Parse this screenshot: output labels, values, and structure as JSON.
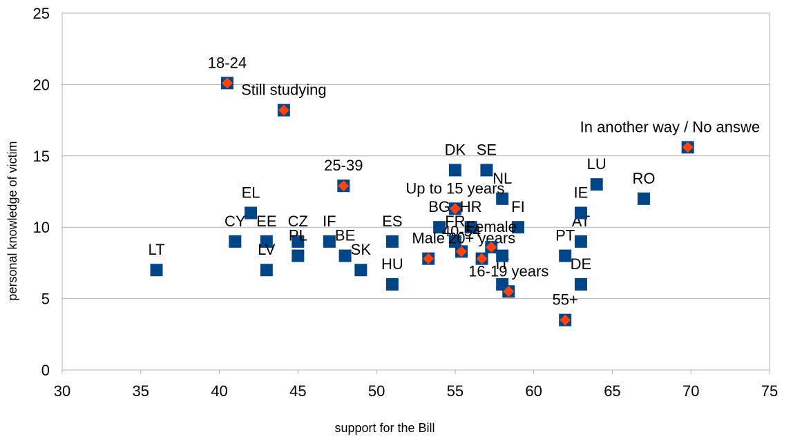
{
  "chart_data": {
    "type": "scatter",
    "xlabel": "support for the Bill",
    "ylabel": "personal knowledge of victim",
    "xlim": [
      30,
      75
    ],
    "xticks": [
      30,
      35,
      40,
      45,
      50,
      55,
      60,
      65,
      70,
      75
    ],
    "ylim": [
      0,
      25
    ],
    "yticks": [
      0,
      5,
      10,
      15,
      20,
      25
    ],
    "grid": true,
    "series": [
      {
        "color": "#004586",
        "marker": "square",
        "labels": [
          "LT",
          "CY",
          "EL",
          "EE",
          "LV",
          "CZ",
          "PL",
          "IF",
          "BE",
          "SK",
          "ES",
          "HU",
          "BG",
          "FR",
          "DK",
          "HR",
          "SE",
          "NL",
          "FI",
          "IT",
          null,
          "PT",
          "AT",
          "DE",
          "IE",
          "LU",
          "RO"
        ],
        "x": [
          36,
          41,
          42,
          43,
          43,
          45,
          45,
          47,
          48,
          49,
          51,
          51,
          54,
          55,
          55,
          56,
          57,
          58,
          59,
          58,
          58,
          62,
          63,
          63,
          63,
          64,
          67
        ],
        "y": [
          7,
          9,
          11,
          9,
          7,
          9,
          8,
          9,
          8,
          7,
          9,
          6,
          10,
          9,
          14,
          10,
          14,
          12,
          10,
          6,
          8,
          8,
          9,
          6,
          11,
          13,
          12
        ]
      },
      {
        "color": "#ff420e",
        "marker": "diamond",
        "labels": [
          "18-24",
          "Still studying",
          "25-39",
          "Up to 15 years",
          "Male",
          "40-54",
          "20+ years",
          "Female",
          "16-19 years",
          "55+",
          "In another way / No answe"
        ],
        "x": [
          40.5,
          44.1,
          47.9,
          55.0,
          53.3,
          55.4,
          56.7,
          57.3,
          58.4,
          62.0,
          69.8
        ],
        "y": [
          20.1,
          18.2,
          12.9,
          11.3,
          7.8,
          8.3,
          7.8,
          8.6,
          5.5,
          3.5,
          15.6
        ]
      }
    ]
  }
}
